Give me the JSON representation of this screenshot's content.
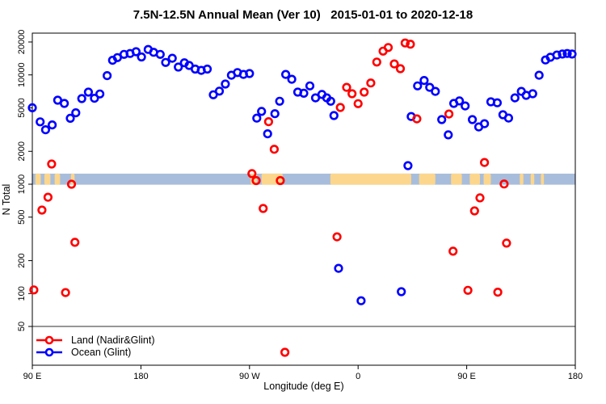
{
  "title": "7.5N-12.5N Annual Mean (Ver 10)   2015-01-01 to 2020-12-18",
  "legend": {
    "items": [
      {
        "label": "Land (Nadir&Glint)",
        "color": "#ff0000"
      },
      {
        "label": "Ocean (Glint)",
        "color": "#0000ff"
      }
    ]
  },
  "chart_data": {
    "type": "scatter",
    "title": "7.5N-12.5N Annual Mean (Ver 10)   2015-01-01 to 2020-12-18",
    "xlabel": "Longitude (deg E)",
    "ylabel": "N Total",
    "x_axis": {
      "range_axis_deg": [
        90,
        540
      ],
      "ticks": [
        {
          "pos": 90,
          "label": "90 E"
        },
        {
          "pos": 180,
          "label": "180"
        },
        {
          "pos": 270,
          "label": "90 W"
        },
        {
          "pos": 360,
          "label": "0"
        },
        {
          "pos": 450,
          "label": "90 E"
        },
        {
          "pos": 540,
          "label": "180"
        }
      ]
    },
    "y_axis": {
      "scale": "log",
      "ticks": [
        20000,
        10000,
        5000,
        2000,
        1000,
        500,
        200,
        100,
        50
      ],
      "range": [
        22,
        23000
      ]
    },
    "reference_line": {
      "value": 50,
      "color": "#595959"
    },
    "map_band": {
      "value_top": 1250,
      "value_bottom": 990,
      "ocean_color": "#a8bddb",
      "land_color": "#fcd68c",
      "land_patches_deg": [
        [
          92.5,
          97
        ],
        [
          100,
          105
        ],
        [
          108.5,
          113
        ],
        [
          122,
          125
        ],
        [
          271,
          276
        ],
        [
          280,
          297.5
        ],
        [
          337,
          404
        ],
        [
          410.5,
          424
        ],
        [
          437,
          446
        ],
        [
          452.5,
          461
        ],
        [
          464,
          470
        ],
        [
          494,
          497
        ],
        [
          503,
          506
        ],
        [
          511.5,
          514
        ]
      ]
    },
    "series": [
      {
        "name": "Ocean (Glint)",
        "color": "#0000ff",
        "marker": "open-circle",
        "points": [
          [
            90,
            5000
          ],
          [
            96.5,
            3720
          ],
          [
            101,
            3150
          ],
          [
            106.5,
            3490
          ],
          [
            111,
            5870
          ],
          [
            116.5,
            5480
          ],
          [
            121.5,
            4010
          ],
          [
            126,
            4500
          ],
          [
            131,
            6070
          ],
          [
            136.5,
            6960
          ],
          [
            141.5,
            6110
          ],
          [
            146,
            6690
          ],
          [
            152,
            9840
          ],
          [
            156.5,
            13600
          ],
          [
            160.5,
            14400
          ],
          [
            166,
            15400
          ],
          [
            171,
            15700
          ],
          [
            176,
            16300
          ],
          [
            180.5,
            14600
          ],
          [
            186,
            17100
          ],
          [
            190.5,
            16100
          ],
          [
            196,
            15400
          ],
          [
            200.5,
            13000
          ],
          [
            206,
            14200
          ],
          [
            211,
            11800
          ],
          [
            216,
            12900
          ],
          [
            220,
            12200
          ],
          [
            225,
            11300
          ],
          [
            230,
            11000
          ],
          [
            235,
            11300
          ],
          [
            240,
            6580
          ],
          [
            245,
            7100
          ],
          [
            250,
            8250
          ],
          [
            255,
            9940
          ],
          [
            260,
            10500
          ],
          [
            265,
            10100
          ],
          [
            270,
            10300
          ],
          [
            276,
            4020
          ],
          [
            280,
            4630
          ],
          [
            285,
            2890
          ],
          [
            291,
            4420
          ],
          [
            295,
            5740
          ],
          [
            300,
            10100
          ],
          [
            305,
            9120
          ],
          [
            310,
            6960
          ],
          [
            315,
            6800
          ],
          [
            320,
            7940
          ],
          [
            324.7,
            6170
          ],
          [
            330,
            6620
          ],
          [
            334,
            6170
          ],
          [
            337.3,
            5740
          ],
          [
            340,
            4250
          ],
          [
            343.8,
            170
          ],
          [
            362.5,
            86
          ],
          [
            395.8,
            104
          ],
          [
            401.3,
            1480
          ],
          [
            404,
            4160
          ],
          [
            409.3,
            7940
          ],
          [
            414.7,
            8890
          ],
          [
            419.3,
            7700
          ],
          [
            424,
            7070
          ],
          [
            429.3,
            3900
          ],
          [
            434.7,
            2830
          ],
          [
            439.3,
            5480
          ],
          [
            444,
            5780
          ],
          [
            448.7,
            5200
          ],
          [
            454.7,
            3900
          ],
          [
            460,
            3340
          ],
          [
            464.7,
            3580
          ],
          [
            470,
            5670
          ],
          [
            475.3,
            5560
          ],
          [
            480,
            4320
          ],
          [
            484.7,
            4030
          ],
          [
            490,
            6170
          ],
          [
            495.3,
            7070
          ],
          [
            499.3,
            6500
          ],
          [
            504.7,
            6730
          ],
          [
            510,
            9940
          ],
          [
            515.3,
            13700
          ],
          [
            519.3,
            14500
          ],
          [
            524.7,
            15200
          ],
          [
            529.3,
            15500
          ],
          [
            533.3,
            15700
          ],
          [
            537.3,
            15500
          ]
        ]
      },
      {
        "name": "Land (Nadir&Glint)",
        "color": "#ff0000",
        "marker": "open-circle",
        "points": [
          [
            91.3,
            108
          ],
          [
            98,
            580
          ],
          [
            103,
            760
          ],
          [
            106,
            1530
          ],
          [
            117.5,
            102
          ],
          [
            122.5,
            1000
          ],
          [
            125.3,
            294
          ],
          [
            272,
            1250
          ],
          [
            275.5,
            1080
          ],
          [
            281.3,
            600
          ],
          [
            285.8,
            3730
          ],
          [
            290.5,
            2090
          ],
          [
            295.5,
            1080
          ],
          [
            299.3,
            29
          ],
          [
            342.5,
            330
          ],
          [
            345.3,
            5040
          ],
          [
            350.5,
            7690
          ],
          [
            355,
            6730
          ],
          [
            360,
            5460
          ],
          [
            365,
            6960
          ],
          [
            370.5,
            8440
          ],
          [
            375.5,
            13100
          ],
          [
            380.7,
            16500
          ],
          [
            385,
            17800
          ],
          [
            390,
            12600
          ],
          [
            395,
            11400
          ],
          [
            399,
            19600
          ],
          [
            403.3,
            19100
          ],
          [
            408.7,
            3960
          ],
          [
            435.3,
            4390
          ],
          [
            438.7,
            244
          ],
          [
            451,
            107
          ],
          [
            456.5,
            570
          ],
          [
            461,
            750
          ],
          [
            464.7,
            1580
          ],
          [
            475.8,
            103
          ],
          [
            481,
            1005
          ],
          [
            483,
            289
          ]
        ]
      }
    ],
    "legend_position": "bottom-left",
    "grid": false
  }
}
